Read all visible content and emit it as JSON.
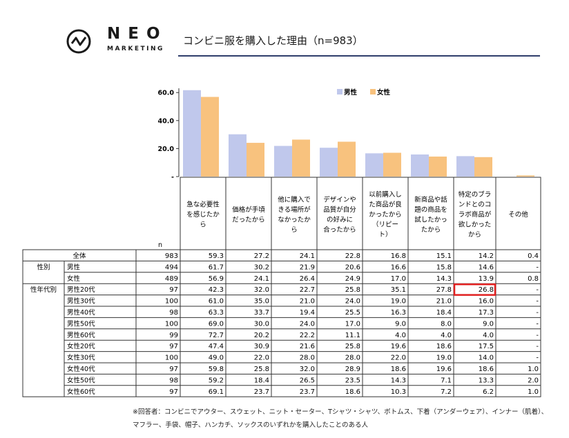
{
  "header": {
    "logo_main": "NEO",
    "logo_sub": "MARKETING",
    "title": "コンビニ服を購入した理由（n=983）"
  },
  "colors": {
    "male": "#c0c8ec",
    "female": "#f8c27e",
    "highlight": "#e02020",
    "rule": "#2f3e6b"
  },
  "chart_data": {
    "type": "bar",
    "categories": [
      "急な必要性を感じたから",
      "価格が手頃だったから",
      "他に購入できる場所がなかったから",
      "デザインや品質が自分の好みに合ったから",
      "以前購入した商品が良かったから（リピート）",
      "新商品や話題の商品を試したかったから",
      "特定のブランドとのコラボ商品が欲しかったから",
      "その他"
    ],
    "category_lines": [
      [
        "急な必要性",
        "を感じたか",
        "ら"
      ],
      [
        "価格が手頃",
        "だったから"
      ],
      [
        "他に購入で",
        "きる場所が",
        "なかったか",
        "ら"
      ],
      [
        "デザインや",
        "品質が自分",
        "の好みに",
        "合ったから"
      ],
      [
        "以前購入し",
        "た商品が良",
        "かったから",
        "（リピー",
        "ト）"
      ],
      [
        "新商品や話",
        "題の商品を",
        "試したかっ",
        "たから"
      ],
      [
        "特定のブラ",
        "ンドとのコ",
        "ラボ商品が",
        "欲しかった",
        "から"
      ],
      [
        "その他"
      ]
    ],
    "series": [
      {
        "name": "男性",
        "values": [
          61.7,
          30.2,
          21.9,
          20.6,
          16.6,
          15.8,
          14.6,
          0
        ]
      },
      {
        "name": "女性",
        "values": [
          56.9,
          24.1,
          26.4,
          24.9,
          17.0,
          14.3,
          13.9,
          0.8
        ]
      }
    ],
    "y_ticks": [
      "60.0",
      "40.0",
      "20.0",
      "-"
    ],
    "ylim": [
      0,
      65
    ],
    "grid": false,
    "legend": "top-right",
    "n_label": "n",
    "table": {
      "rows": [
        {
          "group": "全体",
          "label": "",
          "n": "983",
          "values": [
            "59.3",
            "27.2",
            "24.1",
            "22.8",
            "16.8",
            "15.1",
            "14.2",
            "0.4"
          ]
        },
        {
          "group": "性別",
          "label": "男性",
          "n": "494",
          "values": [
            "61.7",
            "30.2",
            "21.9",
            "20.6",
            "16.6",
            "15.8",
            "14.6",
            "-"
          ]
        },
        {
          "group": "",
          "label": "女性",
          "n": "489",
          "values": [
            "56.9",
            "24.1",
            "26.4",
            "24.9",
            "17.0",
            "14.3",
            "13.9",
            "0.8"
          ]
        },
        {
          "group": "性年代別",
          "label": "男性20代",
          "n": "97",
          "values": [
            "42.3",
            "32.0",
            "22.7",
            "25.8",
            "35.1",
            "27.8",
            "26.8",
            "-"
          ]
        },
        {
          "group": "",
          "label": "男性30代",
          "n": "100",
          "values": [
            "61.0",
            "35.0",
            "21.0",
            "24.0",
            "19.0",
            "21.0",
            "16.0",
            "-"
          ]
        },
        {
          "group": "",
          "label": "男性40代",
          "n": "98",
          "values": [
            "63.3",
            "33.7",
            "19.4",
            "25.5",
            "16.3",
            "18.4",
            "17.3",
            "-"
          ]
        },
        {
          "group": "",
          "label": "男性50代",
          "n": "100",
          "values": [
            "69.0",
            "30.0",
            "24.0",
            "17.0",
            "9.0",
            "8.0",
            "9.0",
            "-"
          ]
        },
        {
          "group": "",
          "label": "男性60代",
          "n": "99",
          "values": [
            "72.7",
            "20.2",
            "22.2",
            "11.1",
            "4.0",
            "4.0",
            "4.0",
            "-"
          ]
        },
        {
          "group": "",
          "label": "女性20代",
          "n": "97",
          "values": [
            "47.4",
            "30.9",
            "21.6",
            "25.8",
            "19.6",
            "18.6",
            "17.5",
            "-"
          ]
        },
        {
          "group": "",
          "label": "女性30代",
          "n": "100",
          "values": [
            "49.0",
            "22.0",
            "28.0",
            "28.0",
            "22.0",
            "19.0",
            "14.0",
            "-"
          ]
        },
        {
          "group": "",
          "label": "女性40代",
          "n": "97",
          "values": [
            "59.8",
            "25.8",
            "32.0",
            "28.9",
            "18.6",
            "19.6",
            "18.6",
            "1.0"
          ]
        },
        {
          "group": "",
          "label": "女性50代",
          "n": "98",
          "values": [
            "59.2",
            "18.4",
            "26.5",
            "23.5",
            "14.3",
            "7.1",
            "13.3",
            "2.0"
          ]
        },
        {
          "group": "",
          "label": "女性60代",
          "n": "97",
          "values": [
            "69.1",
            "23.7",
            "23.7",
            "18.6",
            "10.3",
            "7.2",
            "6.2",
            "1.0"
          ]
        }
      ],
      "highlight": {
        "row": 3,
        "col": 6
      }
    }
  },
  "footnote": {
    "line1": "※回答者：コンビニでアウター、スウェット、ニット・セーター、Tシャツ・シャツ、ボトムス、下着（アンダーウェア）、インナー（肌着）、",
    "line2": "マフラー、手袋、帽子、ハンカチ、ソックスのいずれかを購入したことのある人"
  }
}
